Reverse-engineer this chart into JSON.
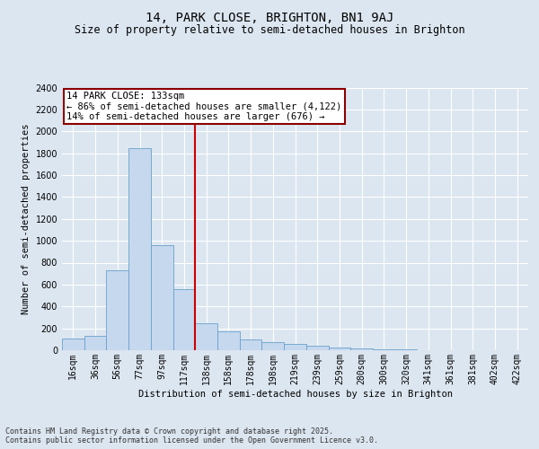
{
  "title": "14, PARK CLOSE, BRIGHTON, BN1 9AJ",
  "subtitle": "Size of property relative to semi-detached houses in Brighton",
  "xlabel": "Distribution of semi-detached houses by size in Brighton",
  "ylabel": "Number of semi-detached properties",
  "bar_labels": [
    "16sqm",
    "36sqm",
    "56sqm",
    "77sqm",
    "97sqm",
    "117sqm",
    "138sqm",
    "158sqm",
    "178sqm",
    "198sqm",
    "219sqm",
    "239sqm",
    "259sqm",
    "280sqm",
    "300sqm",
    "320sqm",
    "341sqm",
    "361sqm",
    "381sqm",
    "402sqm",
    "422sqm"
  ],
  "bar_values": [
    105,
    130,
    730,
    1850,
    960,
    560,
    250,
    175,
    100,
    75,
    55,
    42,
    28,
    16,
    10,
    5,
    3,
    2,
    1,
    1,
    0
  ],
  "bar_color": "#c5d8ee",
  "bar_edge_color": "#6aa0cc",
  "property_label": "14 PARK CLOSE: 133sqm",
  "annotation_line1": "← 86% of semi-detached houses are smaller (4,122)",
  "annotation_line2": "14% of semi-detached houses are larger (676) →",
  "vline_color": "#cc0000",
  "vline_bin_index": 6,
  "annotation_box_color": "#ffffff",
  "annotation_border_color": "#8b0000",
  "ylim": [
    0,
    2400
  ],
  "yticks": [
    0,
    200,
    400,
    600,
    800,
    1000,
    1200,
    1400,
    1600,
    1800,
    2000,
    2200,
    2400
  ],
  "bg_color": "#dce6f0",
  "plot_bg_color": "#dce6f0",
  "footer_line1": "Contains HM Land Registry data © Crown copyright and database right 2025.",
  "footer_line2": "Contains public sector information licensed under the Open Government Licence v3.0.",
  "title_fontsize": 10,
  "subtitle_fontsize": 8.5,
  "axis_label_fontsize": 7.5,
  "tick_fontsize": 7,
  "footer_fontsize": 6,
  "annotation_fontsize": 7.5,
  "grid_color": "#ffffff",
  "grid_linewidth": 0.8
}
